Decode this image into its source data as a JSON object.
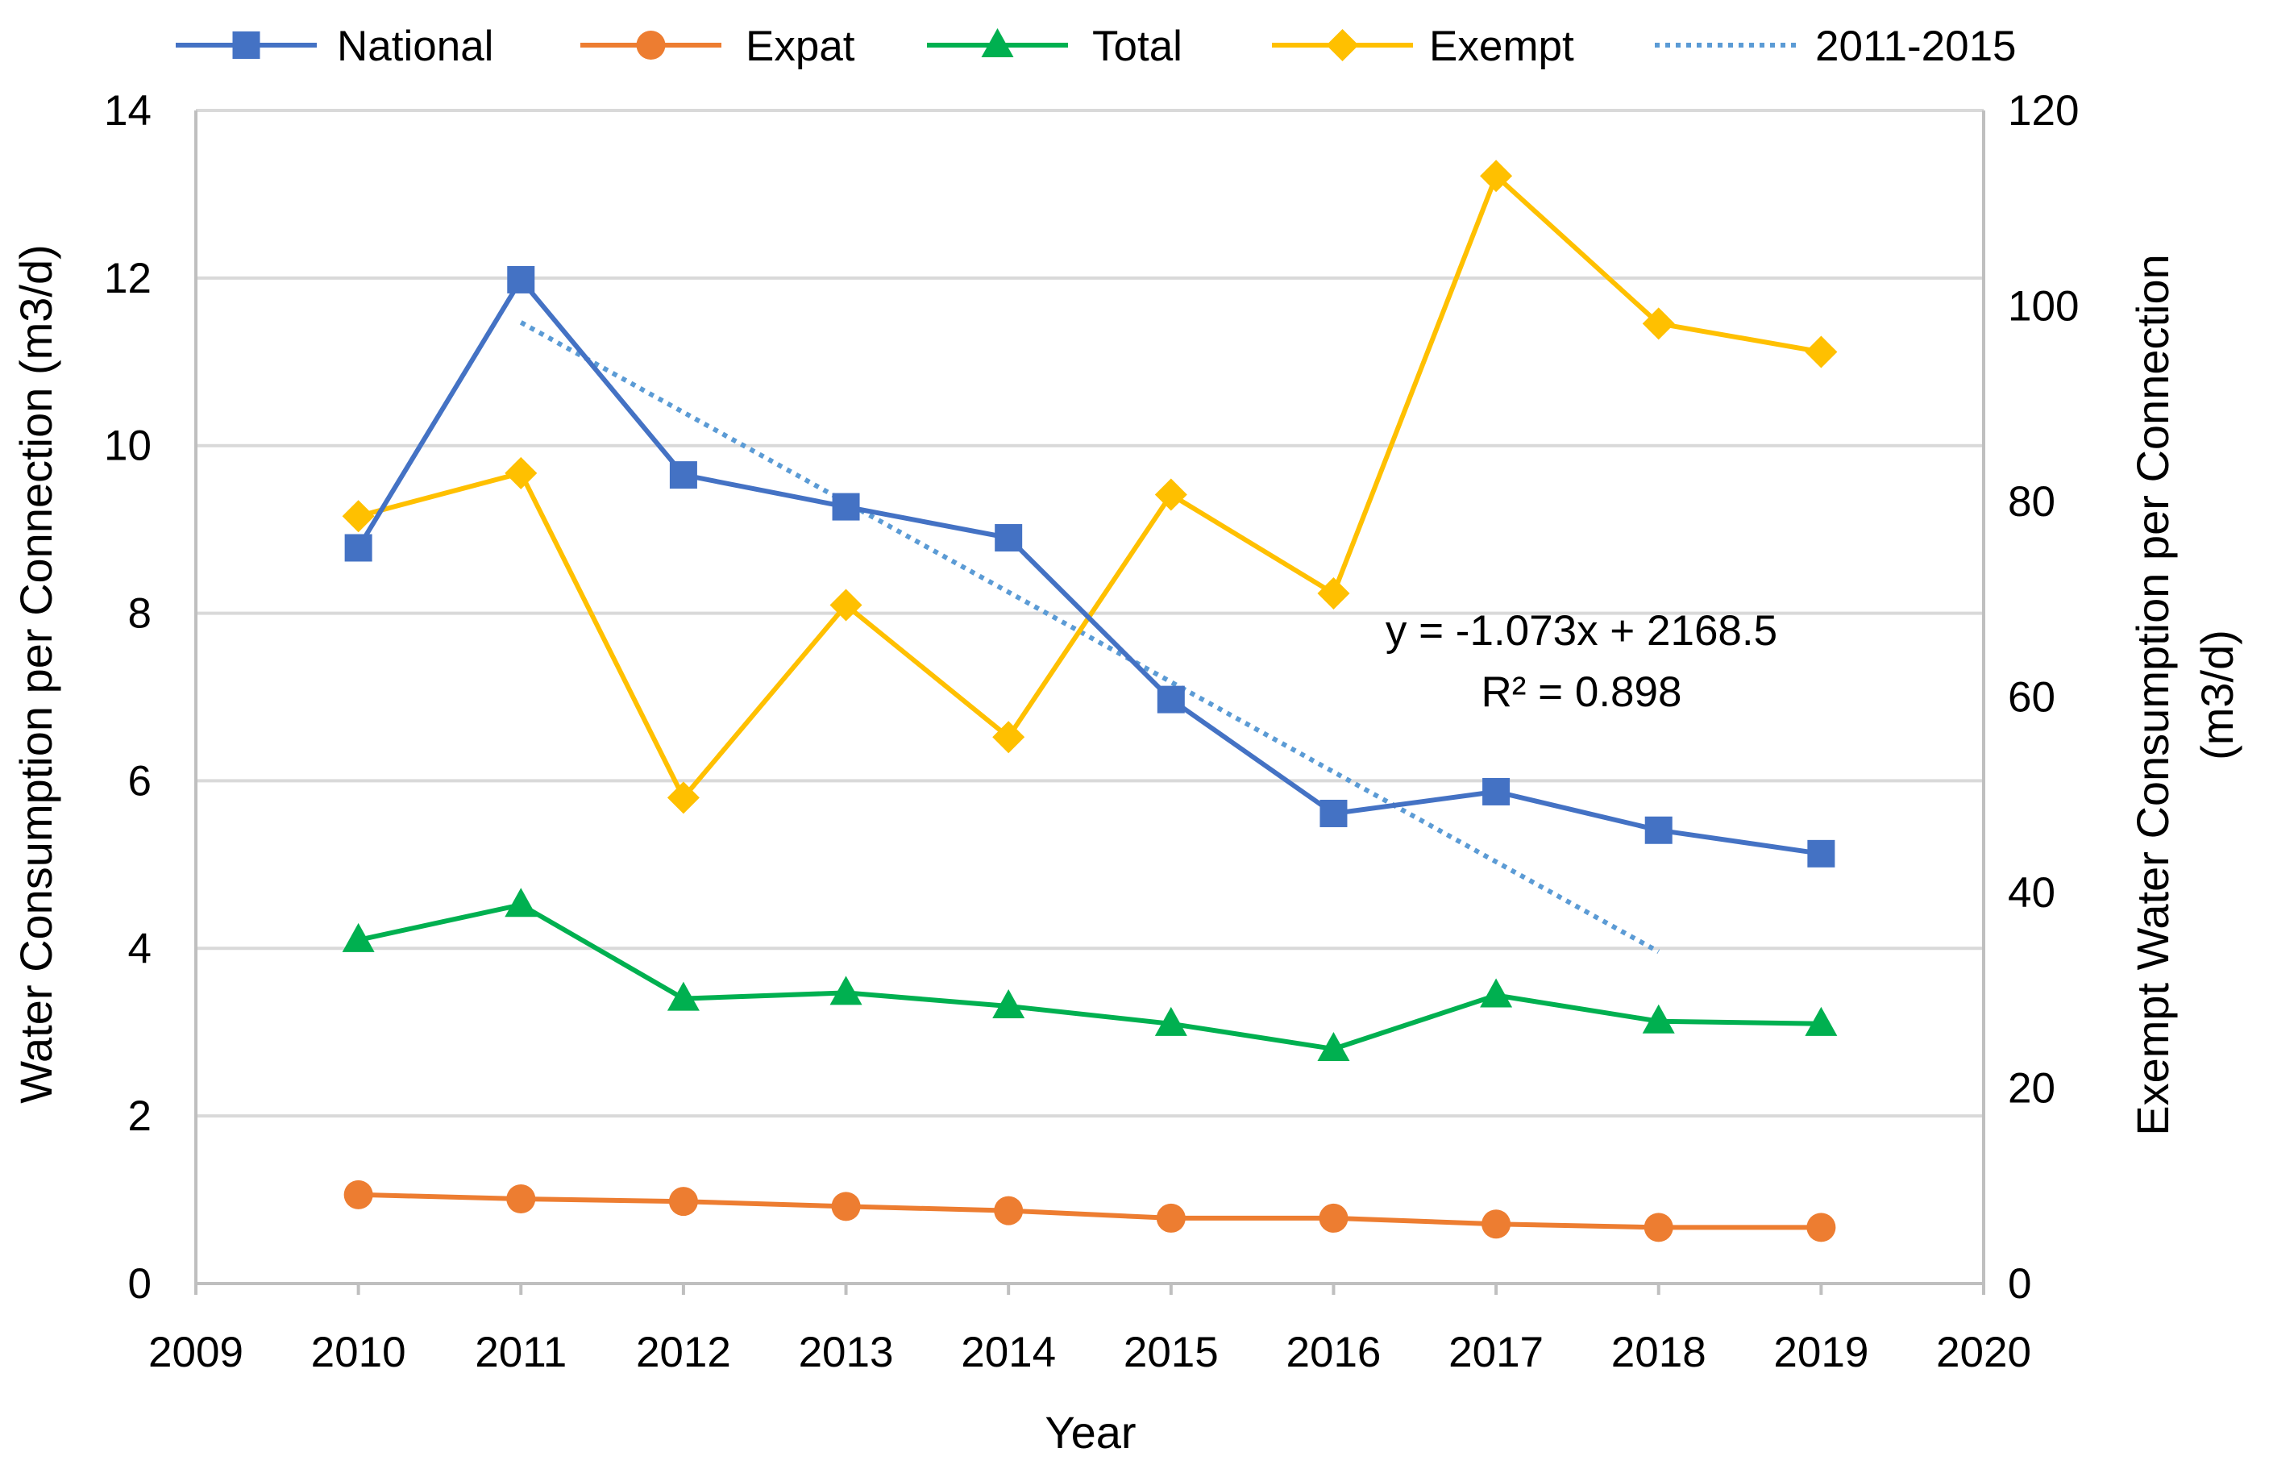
{
  "chart_data": {
    "type": "line",
    "title": "",
    "xlabel": "Year",
    "ylabel": "Water Consumption per Connection (m3/d)",
    "y2label_line1": "Exempt Water Consumption per Connection",
    "y2label_line2": "(m3/d)",
    "xlim": [
      2009,
      2020
    ],
    "ylim": [
      0,
      14
    ],
    "y2lim": [
      0,
      120
    ],
    "x_ticks": [
      2009,
      2010,
      2011,
      2012,
      2013,
      2014,
      2015,
      2016,
      2017,
      2018,
      2019,
      2020
    ],
    "y_ticks": [
      0,
      2,
      4,
      6,
      8,
      10,
      12,
      14
    ],
    "y2_ticks": [
      0,
      20,
      40,
      60,
      80,
      100,
      120
    ],
    "grid": "horizontal",
    "legend_position": "top",
    "series": [
      {
        "name": "National",
        "axis": "left",
        "color": "#4472C4",
        "marker": "square",
        "x": [
          2010,
          2011,
          2012,
          2013,
          2014,
          2015,
          2016,
          2017,
          2018,
          2019
        ],
        "values": [
          8.78,
          11.98,
          9.65,
          9.27,
          8.9,
          6.97,
          5.61,
          5.87,
          5.41,
          5.13
        ]
      },
      {
        "name": "Expat",
        "axis": "left",
        "color": "#ED7D31",
        "marker": "circle",
        "x": [
          2010,
          2011,
          2012,
          2013,
          2014,
          2015,
          2016,
          2017,
          2018,
          2019
        ],
        "values": [
          1.06,
          1.01,
          0.98,
          0.92,
          0.87,
          0.78,
          0.78,
          0.71,
          0.67,
          0.67
        ]
      },
      {
        "name": "Total",
        "axis": "left",
        "color": "#00B050",
        "marker": "triangle",
        "x": [
          2010,
          2011,
          2012,
          2013,
          2014,
          2015,
          2016,
          2017,
          2018,
          2019
        ],
        "values": [
          4.1,
          4.52,
          3.4,
          3.47,
          3.31,
          3.1,
          2.8,
          3.44,
          3.13,
          3.1
        ]
      },
      {
        "name": "Exempt",
        "axis": "right",
        "color": "#FFC000",
        "marker": "diamond",
        "x": [
          2010,
          2011,
          2012,
          2013,
          2014,
          2015,
          2016,
          2017,
          2018,
          2019
        ],
        "values": [
          78.5,
          82.9,
          49.7,
          69.4,
          55.9,
          80.7,
          70.6,
          113.3,
          98.2,
          95.3
        ]
      },
      {
        "name": "2011-2015",
        "axis": "left",
        "color": "#5B9BD5",
        "style": "dotted",
        "x": [
          2011,
          2018
        ],
        "values": [
          11.47,
          3.96
        ]
      }
    ],
    "annotations": {
      "equation": "y = -1.073x + 2168.5",
      "r_squared": "R² = 0.898"
    }
  }
}
